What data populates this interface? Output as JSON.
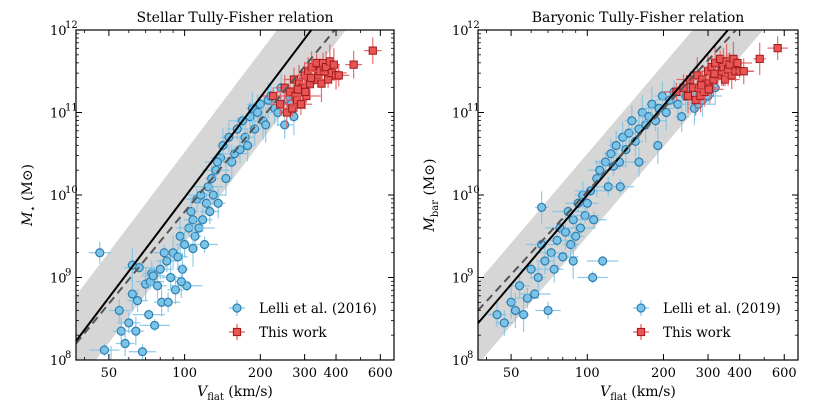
{
  "chart_data": [
    {
      "type": "scatter",
      "panel": "left",
      "title": "Stellar Tully-Fisher relation",
      "xlabel_main": "V",
      "xlabel_sub": "flat",
      "xlabel_unit": "(km/s)",
      "ylabel_main": "M",
      "ylabel_sub": "⋆",
      "ylabel_unit": "(M⊙)",
      "x_scale": "log",
      "y_scale": "log",
      "xlim": [
        37,
        680
      ],
      "ylim_log10": [
        8,
        12
      ],
      "x_ticks": [
        50,
        100,
        200,
        300,
        400,
        600
      ],
      "x_tick_labels": [
        "50",
        "100",
        "200",
        "300",
        "400",
        "600"
      ],
      "y_ticks_log10": [
        8,
        9,
        10,
        11,
        12
      ],
      "y_tick_labels_base": [
        "10",
        "10",
        "10",
        "10",
        "10"
      ],
      "y_tick_labels_exp": [
        "8",
        "9",
        "10",
        "11",
        "12"
      ],
      "fit_line": {
        "slope": 4.03,
        "intercept_at_100": 9.97,
        "style": "solid"
      },
      "band_halfwidth_dex": 0.55,
      "dashed_line": {
        "x": [
          37,
          400
        ],
        "log10_y": [
          8.2,
          12.02
        ],
        "style": "dashed"
      },
      "legend": [
        "Lelli et al. (2016)",
        "This work"
      ],
      "legend_position": "lower-right",
      "series": [
        {
          "name": "Lelli et al. (2016)",
          "color": "#7cc3e8",
          "edge": "#2f7fb0",
          "marker": "circle",
          "points": [
            [
              48,
              8.12
            ],
            [
              51,
              7.95
            ],
            [
              55,
              8.6
            ],
            [
              56,
              8.35
            ],
            [
              58,
              8.2
            ],
            [
              60,
              8.45
            ],
            [
              62,
              8.8
            ],
            [
              64,
              8.35
            ],
            [
              65,
              8.72
            ],
            [
              66,
              9.12
            ],
            [
              68,
              8.1
            ],
            [
              70,
              8.92
            ],
            [
              72,
              8.55
            ],
            [
              73,
              8.95
            ],
            [
              74,
              9.05
            ],
            [
              76,
              8.42
            ],
            [
              78,
              8.9
            ],
            [
              80,
              9.1
            ],
            [
              81,
              8.7
            ],
            [
              83,
              9.3
            ],
            [
              85,
              9.2
            ],
            [
              86,
              8.7
            ],
            [
              88,
              9.0
            ],
            [
              90,
              9.3
            ],
            [
              92,
              8.85
            ],
            [
              94,
              9.25
            ],
            [
              96,
              9.5
            ],
            [
              98,
              9.1
            ],
            [
              100,
              9.4
            ],
            [
              102,
              8.9
            ],
            [
              104,
              9.6
            ],
            [
              106,
              9.8
            ],
            [
              108,
              9.7
            ],
            [
              110,
              9.5
            ],
            [
              112,
              9.95
            ],
            [
              114,
              9.6
            ],
            [
              116,
              10.0
            ],
            [
              118,
              9.7
            ],
            [
              120,
              9.4
            ],
            [
              122,
              9.9
            ],
            [
              124,
              10.1
            ],
            [
              126,
              9.8
            ],
            [
              128,
              10.2
            ],
            [
              130,
              10.0
            ],
            [
              133,
              10.3
            ],
            [
              136,
              9.9
            ],
            [
              139,
              10.45
            ],
            [
              142,
              10.6
            ],
            [
              146,
              10.2
            ],
            [
              150,
              10.7
            ],
            [
              154,
              10.4
            ],
            [
              158,
              10.5
            ],
            [
              162,
              10.8
            ],
            [
              166,
              10.55
            ],
            [
              170,
              10.9
            ],
            [
              174,
              10.7
            ],
            [
              178,
              10.6
            ],
            [
              182,
              10.95
            ],
            [
              186,
              11.05
            ],
            [
              190,
              10.8
            ],
            [
              195,
              11.0
            ],
            [
              200,
              11.1
            ],
            [
              205,
              10.9
            ],
            [
              210,
              10.85
            ],
            [
              215,
              11.15
            ],
            [
              220,
              11.2
            ],
            [
              228,
              11.05
            ],
            [
              235,
              11.0
            ],
            [
              242,
              11.3
            ],
            [
              250,
              10.85
            ],
            [
              258,
              11.15
            ],
            [
              265,
              11.1
            ],
            [
              272,
              10.95
            ],
            [
              280,
              11.2
            ],
            [
              46,
              9.3
            ],
            [
              62,
              9.15
            ],
            [
              75,
              9.02
            ],
            [
              97,
              8.95
            ],
            [
              108,
              9.35
            ],
            [
              135,
              10.4
            ]
          ]
        },
        {
          "name": "This work",
          "color": "#e85555",
          "edge": "#a01818",
          "marker": "square",
          "points": [
            [
              225,
              11.2
            ],
            [
              240,
              11.1
            ],
            [
              250,
              11.3
            ],
            [
              255,
              11.0
            ],
            [
              262,
              11.25
            ],
            [
              268,
              11.05
            ],
            [
              272,
              11.4
            ],
            [
              276,
              11.2
            ],
            [
              280,
              11.15
            ],
            [
              285,
              11.35
            ],
            [
              290,
              11.1
            ],
            [
              295,
              11.3
            ],
            [
              300,
              11.45
            ],
            [
              305,
              11.2
            ],
            [
              310,
              11.5
            ],
            [
              315,
              11.35
            ],
            [
              320,
              11.55
            ],
            [
              328,
              11.4
            ],
            [
              335,
              11.6
            ],
            [
              340,
              11.45
            ],
            [
              345,
              11.5
            ],
            [
              350,
              11.35
            ],
            [
              355,
              11.6
            ],
            [
              360,
              11.5
            ],
            [
              365,
              11.55
            ],
            [
              372,
              11.4
            ],
            [
              378,
              11.62
            ],
            [
              385,
              11.48
            ],
            [
              392,
              11.58
            ],
            [
              400,
              11.45
            ],
            [
              410,
              11.45
            ],
            [
              470,
              11.58
            ],
            [
              560,
              11.75
            ],
            [
              282,
              11.28
            ],
            [
              302,
              11.25
            ],
            [
              318,
              11.42
            ]
          ]
        }
      ]
    },
    {
      "type": "scatter",
      "panel": "right",
      "title": "Baryonic Tully-Fisher relation",
      "xlabel_main": "V",
      "xlabel_sub": "flat",
      "xlabel_unit": "(km/s)",
      "ylabel_main": "M",
      "ylabel_sub": "bar",
      "ylabel_unit": "(M⊙)",
      "x_scale": "log",
      "y_scale": "log",
      "xlim": [
        37,
        680
      ],
      "ylim_log10": [
        8,
        12
      ],
      "x_ticks": [
        50,
        100,
        200,
        300,
        400,
        600
      ],
      "x_tick_labels": [
        "50",
        "100",
        "200",
        "300",
        "400",
        "600"
      ],
      "y_ticks_log10": [
        8,
        9,
        10,
        11,
        12
      ],
      "y_tick_labels_base": [
        "10",
        "10",
        "10",
        "10",
        "10"
      ],
      "y_tick_labels_exp": [
        "8",
        "9",
        "10",
        "11",
        "12"
      ],
      "fit_line": {
        "slope": 3.6,
        "intercept_at_100": 10.0,
        "style": "solid"
      },
      "band_halfwidth_dex": 0.5,
      "dashed_line": {
        "x": [
          37,
          400
        ],
        "log10_y": [
          8.6,
          12.05
        ],
        "style": "dashed"
      },
      "legend": [
        "Lelli et al. (2019)",
        "This work"
      ],
      "legend_position": "lower-right",
      "series": [
        {
          "name": "Lelli et al. (2019)",
          "color": "#7cc3e8",
          "edge": "#2f7fb0",
          "marker": "circle",
          "points": [
            [
              44,
              8.55
            ],
            [
              47,
              8.45
            ],
            [
              50,
              8.7
            ],
            [
              52,
              8.6
            ],
            [
              54,
              8.9
            ],
            [
              56,
              8.55
            ],
            [
              58,
              8.75
            ],
            [
              60,
              9.1
            ],
            [
              62,
              8.8
            ],
            [
              64,
              9.0
            ],
            [
              66,
              9.4
            ],
            [
              68,
              9.2
            ],
            [
              70,
              8.6
            ],
            [
              72,
              9.3
            ],
            [
              74,
              9.1
            ],
            [
              76,
              9.45
            ],
            [
              78,
              9.6
            ],
            [
              80,
              9.25
            ],
            [
              82,
              9.55
            ],
            [
              84,
              9.8
            ],
            [
              86,
              9.4
            ],
            [
              88,
              9.7
            ],
            [
              90,
              9.5
            ],
            [
              92,
              9.9
            ],
            [
              94,
              9.6
            ],
            [
              96,
              10.0
            ],
            [
              98,
              9.75
            ],
            [
              100,
              9.9
            ],
            [
              103,
              10.05
            ],
            [
              106,
              9.7
            ],
            [
              109,
              10.2
            ],
            [
              112,
              10.3
            ],
            [
              115,
              9.2
            ],
            [
              118,
              10.4
            ],
            [
              121,
              10.1
            ],
            [
              124,
              10.5
            ],
            [
              127,
              10.35
            ],
            [
              130,
              10.6
            ],
            [
              134,
              10.4
            ],
            [
              138,
              10.7
            ],
            [
              142,
              10.55
            ],
            [
              146,
              10.75
            ],
            [
              150,
              10.9
            ],
            [
              155,
              10.65
            ],
            [
              160,
              10.8
            ],
            [
              165,
              11.0
            ],
            [
              170,
              10.85
            ],
            [
              175,
              10.95
            ],
            [
              180,
              11.1
            ],
            [
              186,
              10.9
            ],
            [
              192,
              11.05
            ],
            [
              198,
              11.2
            ],
            [
              205,
              11.0
            ],
            [
              212,
              11.15
            ],
            [
              220,
              11.25
            ],
            [
              228,
              11.1
            ],
            [
              236,
              10.95
            ],
            [
              245,
              11.2
            ],
            [
              255,
              11.3
            ],
            [
              265,
              11.05
            ],
            [
              275,
              11.1
            ],
            [
              285,
              11.15
            ],
            [
              300,
              11.2
            ],
            [
              320,
              11.3
            ],
            [
              66,
              9.85
            ],
            [
              88,
              9.2
            ],
            [
              105,
              9.0
            ],
            [
              135,
              10.1
            ],
            [
              160,
              10.4
            ],
            [
              190,
              10.6
            ]
          ]
        },
        {
          "name": "This work",
          "color": "#e85555",
          "edge": "#a01818",
          "marker": "square",
          "points": [
            [
              225,
              11.25
            ],
            [
              240,
              11.3
            ],
            [
              250,
              11.2
            ],
            [
              255,
              11.4
            ],
            [
              262,
              11.3
            ],
            [
              268,
              11.15
            ],
            [
              272,
              11.45
            ],
            [
              276,
              11.3
            ],
            [
              280,
              11.2
            ],
            [
              285,
              11.4
            ],
            [
              290,
              11.25
            ],
            [
              295,
              11.35
            ],
            [
              300,
              11.5
            ],
            [
              305,
              11.3
            ],
            [
              310,
              11.55
            ],
            [
              315,
              11.4
            ],
            [
              320,
              11.6
            ],
            [
              328,
              11.45
            ],
            [
              335,
              11.65
            ],
            [
              340,
              11.5
            ],
            [
              345,
              11.55
            ],
            [
              350,
              11.4
            ],
            [
              355,
              11.62
            ],
            [
              360,
              11.52
            ],
            [
              365,
              11.58
            ],
            [
              372,
              11.45
            ],
            [
              378,
              11.65
            ],
            [
              385,
              11.5
            ],
            [
              392,
              11.6
            ],
            [
              400,
              11.5
            ],
            [
              415,
              11.5
            ],
            [
              480,
              11.65
            ],
            [
              565,
              11.78
            ],
            [
              282,
              11.33
            ],
            [
              302,
              11.28
            ],
            [
              318,
              11.47
            ]
          ]
        }
      ]
    }
  ]
}
